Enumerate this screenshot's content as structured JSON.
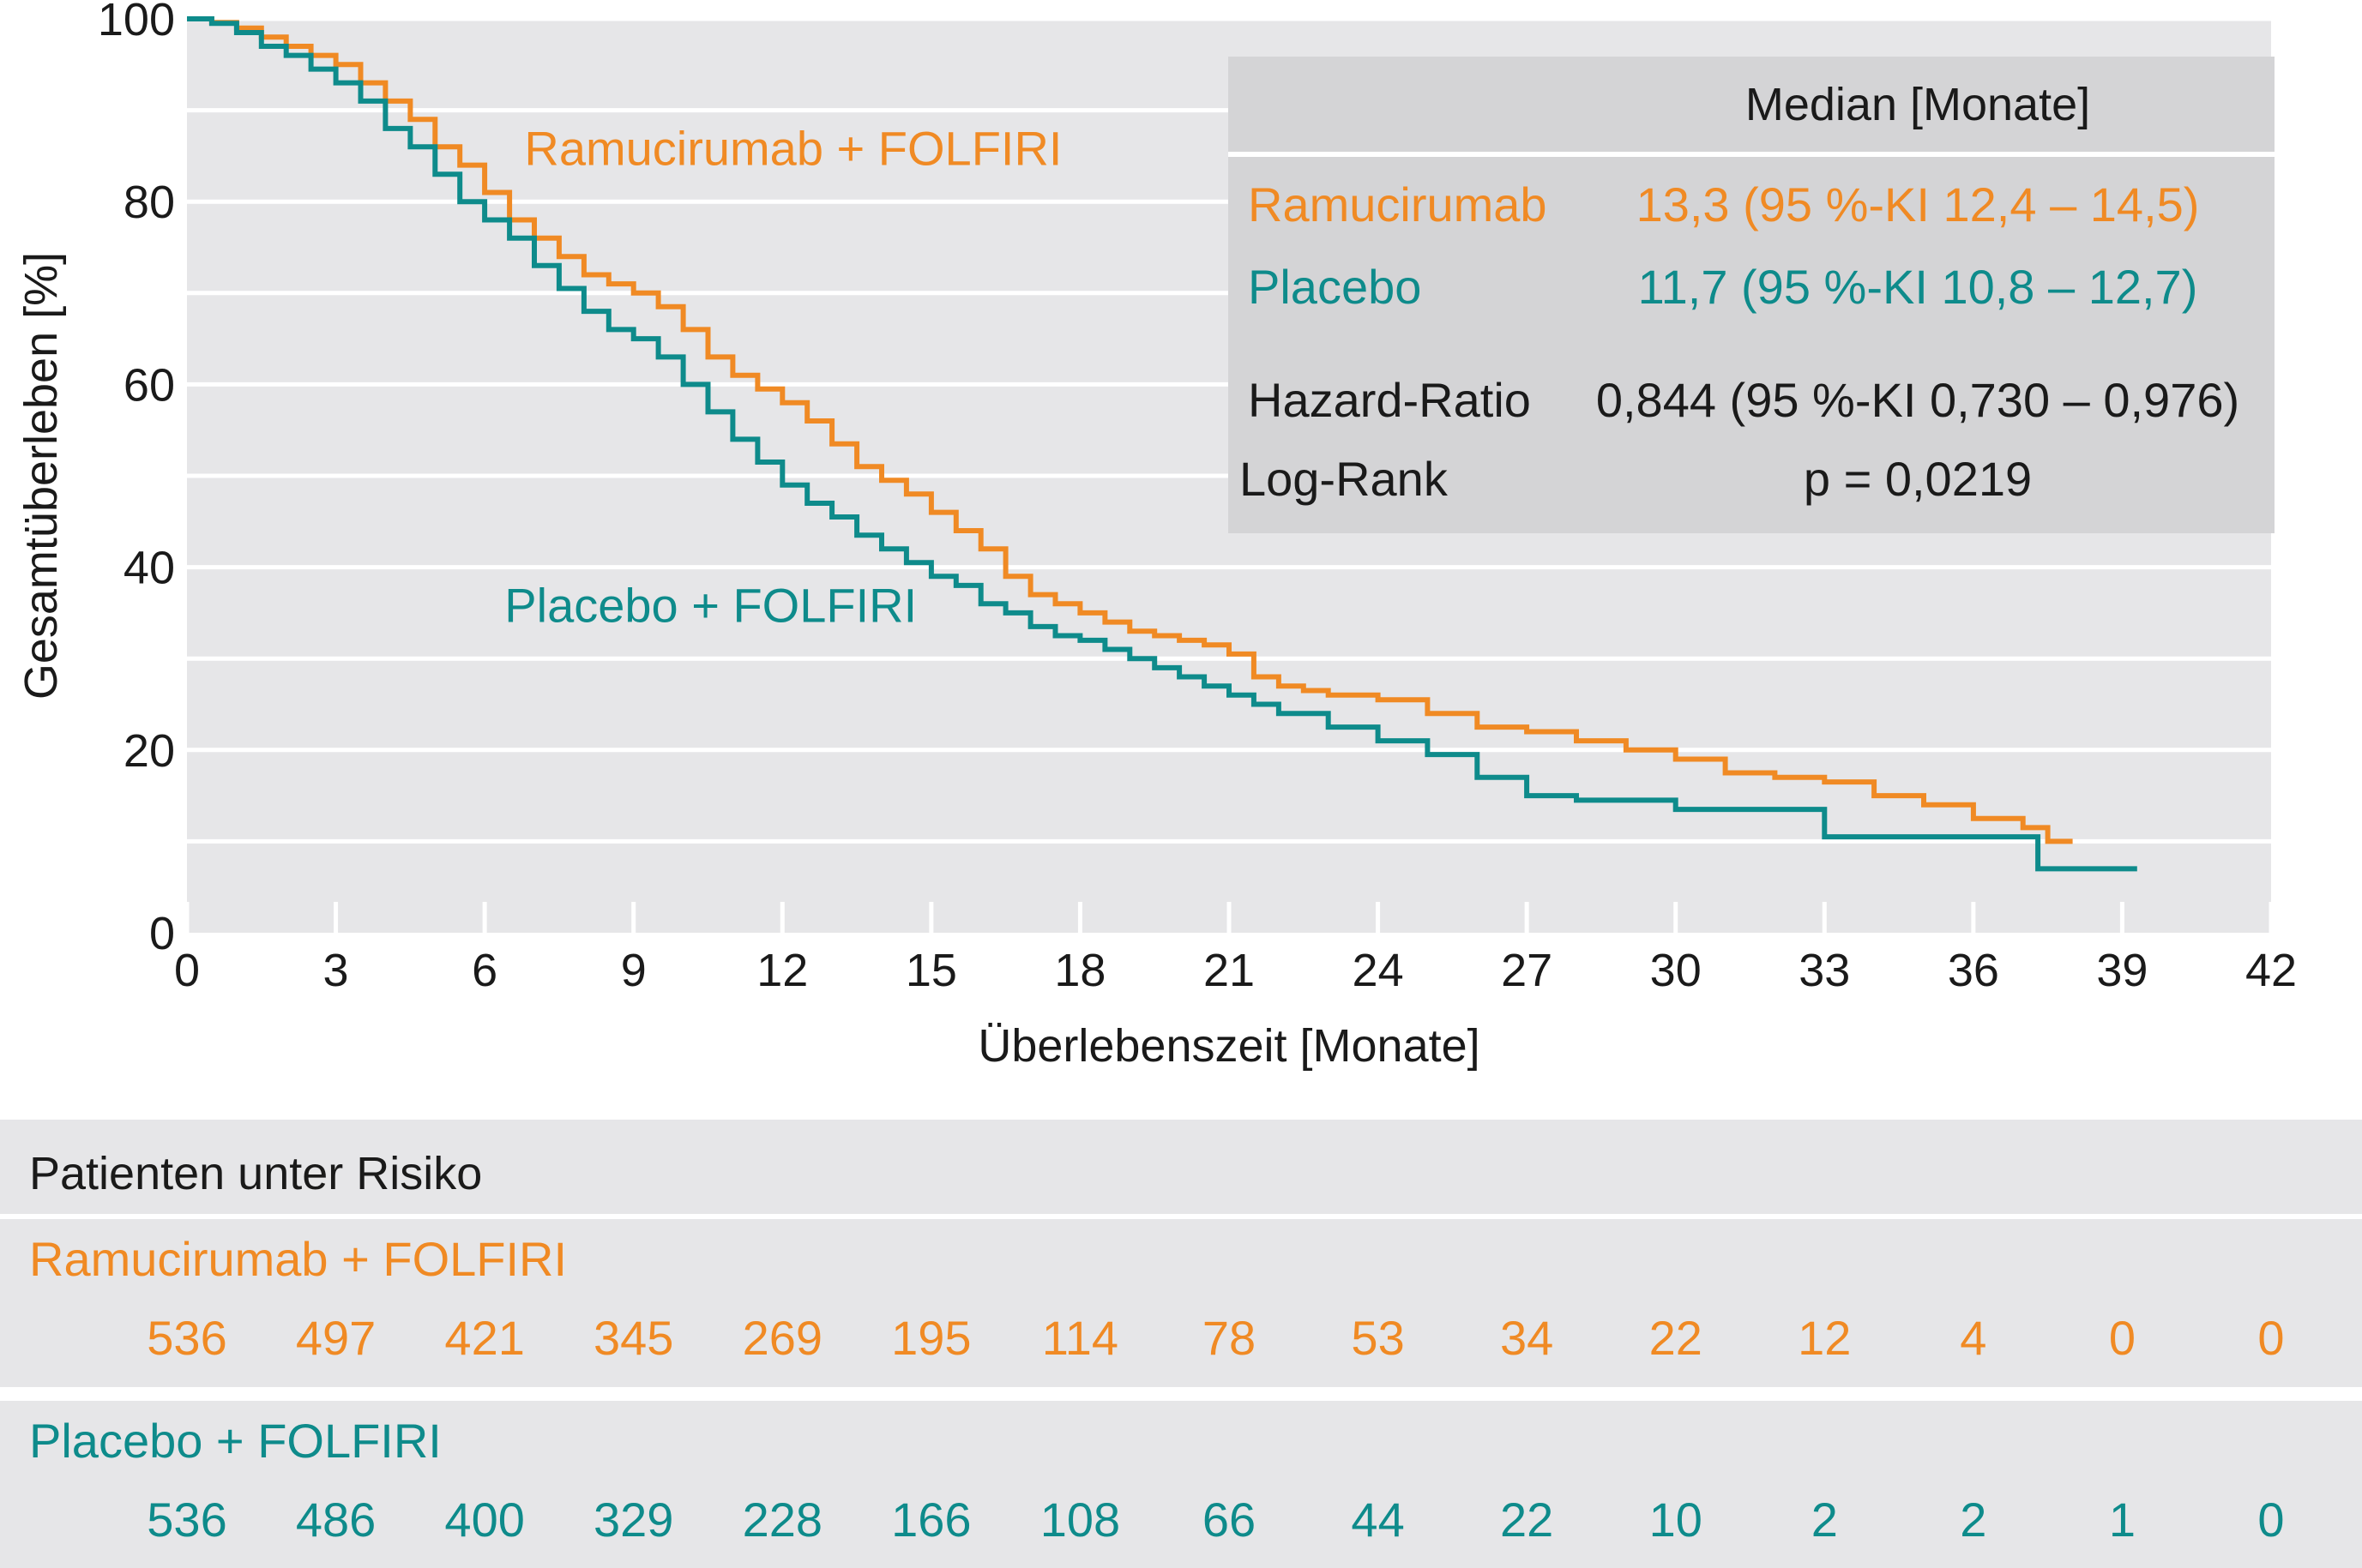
{
  "colors": {
    "ramucirumab": "#f08a24",
    "placebo": "#0e8b8b",
    "plot_bg": "#e6e6e8",
    "grid": "#ffffff",
    "box_bg": "#d4d4d6",
    "text": "#1a1a1a"
  },
  "chart_data": {
    "type": "line",
    "xlabel": "Überlebenszeit [Monate]",
    "ylabel": "Gesamtüberleben [%]",
    "xlim": [
      0,
      42
    ],
    "ylim": [
      0,
      100
    ],
    "xticks": [
      0,
      3,
      6,
      9,
      12,
      15,
      18,
      21,
      24,
      27,
      30,
      33,
      36,
      39,
      42
    ],
    "yticks": [
      0,
      20,
      40,
      60,
      80,
      100
    ],
    "grid": true,
    "series": [
      {
        "name": "Ramucirumab + FOLFIRI",
        "color_key": "ramucirumab",
        "points": [
          [
            0,
            100
          ],
          [
            0.5,
            99.6
          ],
          [
            1.0,
            99
          ],
          [
            1.5,
            98
          ],
          [
            2.0,
            97
          ],
          [
            2.5,
            96
          ],
          [
            3.0,
            95
          ],
          [
            3.5,
            93
          ],
          [
            4.0,
            91
          ],
          [
            4.5,
            89
          ],
          [
            5.0,
            86
          ],
          [
            5.5,
            84
          ],
          [
            6.0,
            81
          ],
          [
            6.5,
            78
          ],
          [
            7.0,
            76
          ],
          [
            7.5,
            74
          ],
          [
            8.0,
            72
          ],
          [
            8.5,
            71
          ],
          [
            9.0,
            70
          ],
          [
            9.5,
            68.5
          ],
          [
            10.0,
            66
          ],
          [
            10.5,
            63
          ],
          [
            11.0,
            61
          ],
          [
            11.5,
            59.5
          ],
          [
            12.0,
            58
          ],
          [
            12.5,
            56
          ],
          [
            13.0,
            53.5
          ],
          [
            13.5,
            51
          ],
          [
            14.0,
            49.5
          ],
          [
            14.5,
            48
          ],
          [
            15.0,
            46
          ],
          [
            15.5,
            44
          ],
          [
            16.0,
            42
          ],
          [
            16.5,
            39
          ],
          [
            17.0,
            37
          ],
          [
            17.5,
            36
          ],
          [
            18.0,
            35
          ],
          [
            18.5,
            34
          ],
          [
            19.0,
            33
          ],
          [
            19.5,
            32.5
          ],
          [
            20.0,
            32
          ],
          [
            20.5,
            31.5
          ],
          [
            21.0,
            30.5
          ],
          [
            21.5,
            28
          ],
          [
            22.0,
            27
          ],
          [
            22.5,
            26.5
          ],
          [
            23.0,
            26
          ],
          [
            24.0,
            25.5
          ],
          [
            25.0,
            24
          ],
          [
            26.0,
            22.5
          ],
          [
            27.0,
            22
          ],
          [
            28.0,
            21
          ],
          [
            29.0,
            20
          ],
          [
            30.0,
            19
          ],
          [
            31.0,
            17.5
          ],
          [
            32.0,
            17
          ],
          [
            33.0,
            16.5
          ],
          [
            34.0,
            15
          ],
          [
            35.0,
            14
          ],
          [
            36.0,
            12.5
          ],
          [
            37.0,
            11.5
          ],
          [
            37.5,
            10
          ],
          [
            38.0,
            10
          ]
        ]
      },
      {
        "name": "Placebo + FOLFIRI",
        "color_key": "placebo",
        "points": [
          [
            0,
            100
          ],
          [
            0.5,
            99.5
          ],
          [
            1.0,
            98.5
          ],
          [
            1.5,
            97
          ],
          [
            2.0,
            96
          ],
          [
            2.5,
            94.5
          ],
          [
            3.0,
            93
          ],
          [
            3.5,
            91
          ],
          [
            4.0,
            88
          ],
          [
            4.5,
            86
          ],
          [
            5.0,
            83
          ],
          [
            5.5,
            80
          ],
          [
            6.0,
            78
          ],
          [
            6.5,
            76
          ],
          [
            7.0,
            73
          ],
          [
            7.5,
            70.5
          ],
          [
            8.0,
            68
          ],
          [
            8.5,
            66
          ],
          [
            9.0,
            65
          ],
          [
            9.5,
            63
          ],
          [
            10.0,
            60
          ],
          [
            10.5,
            57
          ],
          [
            11.0,
            54
          ],
          [
            11.5,
            51.5
          ],
          [
            12.0,
            49
          ],
          [
            12.5,
            47
          ],
          [
            13.0,
            45.5
          ],
          [
            13.5,
            43.5
          ],
          [
            14.0,
            42
          ],
          [
            14.5,
            40.5
          ],
          [
            15.0,
            39
          ],
          [
            15.5,
            38
          ],
          [
            16.0,
            36
          ],
          [
            16.5,
            35
          ],
          [
            17.0,
            33.5
          ],
          [
            17.5,
            32.5
          ],
          [
            18.0,
            32
          ],
          [
            18.5,
            31
          ],
          [
            19.0,
            30
          ],
          [
            19.5,
            29
          ],
          [
            20.0,
            28
          ],
          [
            20.5,
            27
          ],
          [
            21.0,
            26
          ],
          [
            21.5,
            25
          ],
          [
            22.0,
            24
          ],
          [
            23.0,
            22.5
          ],
          [
            24.0,
            21
          ],
          [
            25.0,
            19.5
          ],
          [
            26.0,
            17
          ],
          [
            27.0,
            15
          ],
          [
            28.0,
            14.5
          ],
          [
            29.0,
            14.5
          ],
          [
            30.0,
            13.5
          ],
          [
            31.0,
            13.5
          ],
          [
            32.0,
            13.5
          ],
          [
            33.0,
            10.5
          ],
          [
            34.0,
            10.5
          ],
          [
            35.0,
            10.5
          ],
          [
            36.0,
            10.5
          ],
          [
            37.0,
            10.5
          ],
          [
            37.3,
            7
          ],
          [
            39.3,
            7
          ]
        ]
      }
    ],
    "annotations": [
      {
        "text": "Ramucirumab + FOLFIRI",
        "color_key": "ramucirumab",
        "x": 6.8,
        "y": 84
      },
      {
        "text": "Placebo + FOLFIRI",
        "color_key": "placebo",
        "x": 6.4,
        "y": 34
      }
    ]
  },
  "stats_box": {
    "header": "Median [Monate]",
    "rows": [
      {
        "label": "Ramucirumab",
        "value": "13,3 (95 %-KI 12,4 – 14,5)",
        "color_key": "ramucirumab"
      },
      {
        "label": "Placebo",
        "value": "11,7 (95 %-KI 10,8 – 12,7)",
        "color_key": "placebo"
      },
      {
        "label": "Hazard-Ratio",
        "value": "0,844 (95 %-KI 0,730 – 0,976)",
        "color_key": "text"
      },
      {
        "label": "Log-Rank",
        "value": "p = 0,0219",
        "color_key": "text"
      }
    ]
  },
  "risk_table": {
    "title": "Patienten unter Risiko",
    "groups": [
      {
        "label": "Ramucirumab + FOLFIRI",
        "color_key": "ramucirumab",
        "counts": [
          "536",
          "497",
          "421",
          "345",
          "269",
          "195",
          "114",
          "78",
          "53",
          "34",
          "22",
          "12",
          "4",
          "0",
          "0"
        ]
      },
      {
        "label": "Placebo + FOLFIRI",
        "color_key": "placebo",
        "counts": [
          "536",
          "486",
          "400",
          "329",
          "228",
          "166",
          "108",
          "66",
          "44",
          "22",
          "10",
          "2",
          "2",
          "1",
          "0"
        ]
      }
    ]
  }
}
